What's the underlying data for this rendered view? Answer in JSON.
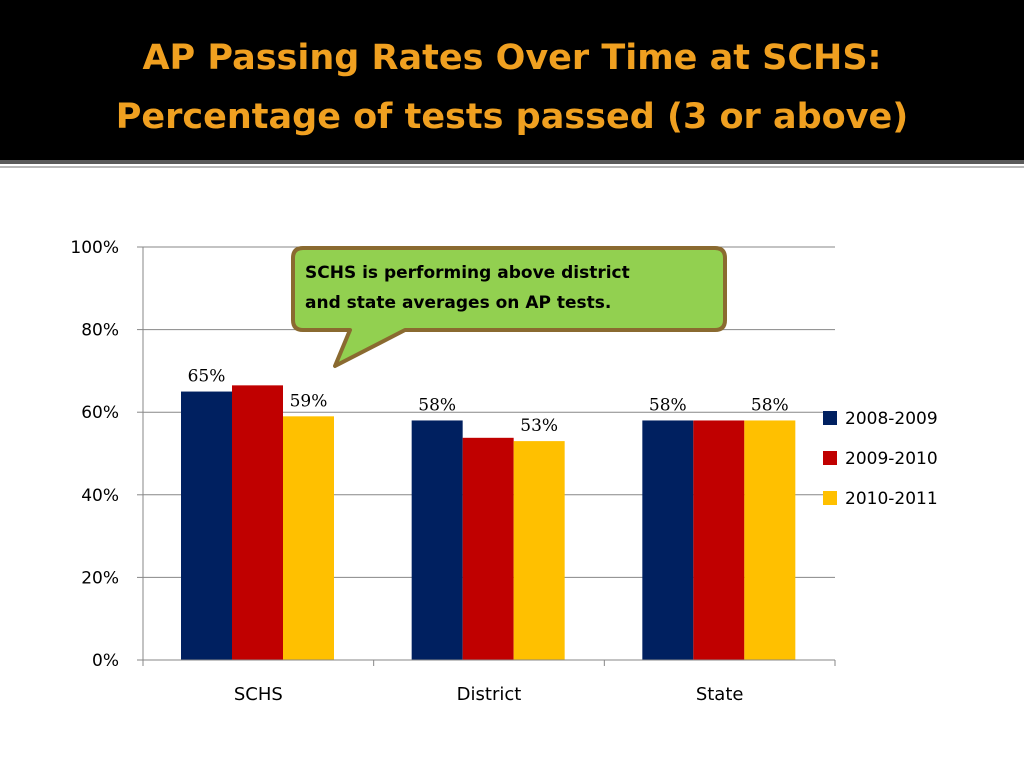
{
  "slide": {
    "title_line_1": "AP Passing Rates Over Time at SCHS:",
    "title_line_2": "Percentage of tests passed (3 or above)",
    "title_color": "#f0a020",
    "background": "#000000"
  },
  "callout": {
    "line_1": "SCHS is performing above district",
    "line_2": "and state averages on AP tests.",
    "fill": "#92d050",
    "border": "#8a6a30"
  },
  "chart_data": {
    "type": "bar",
    "categories": [
      "SCHS",
      "District",
      "State"
    ],
    "series": [
      {
        "name": "2008-2009",
        "color": "#002060",
        "values": [
          65,
          58,
          58
        ],
        "labels": [
          "65%",
          "58%",
          "58%"
        ]
      },
      {
        "name": "2009-2010",
        "color": "#c00000",
        "values": [
          66.5,
          53.8,
          58
        ],
        "labels": [
          "",
          "",
          ""
        ]
      },
      {
        "name": "2010-2011",
        "color": "#ffc000",
        "values": [
          59,
          53,
          58
        ],
        "labels": [
          "59%",
          "53%",
          "58%"
        ]
      }
    ],
    "ylim": [
      0,
      100
    ],
    "yticks": [
      "0%",
      "20%",
      "40%",
      "60%",
      "80%",
      "100%"
    ],
    "grid": true,
    "legend_position": "right"
  }
}
